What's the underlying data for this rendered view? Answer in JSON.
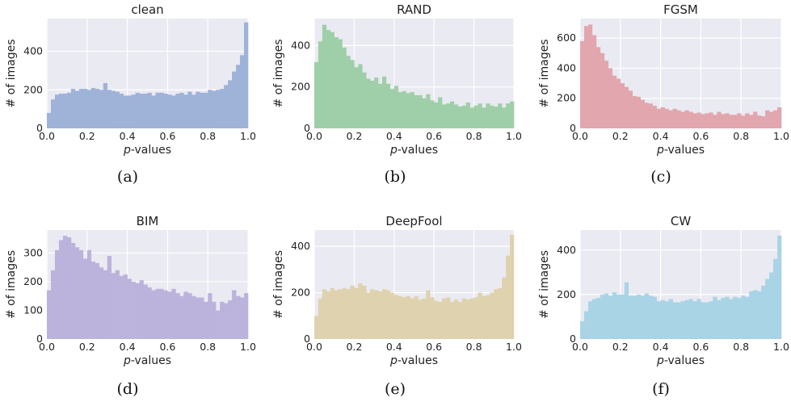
{
  "chart_data": [
    {
      "type": "bar",
      "title": "clean",
      "caption": "(a)",
      "xlabel_italic": "p",
      "xlabel_rest": "-values",
      "ylabel": "# of images",
      "color": "#9fb2d8",
      "xlim": [
        0,
        1
      ],
      "ylim": [
        0,
        570
      ],
      "xticks": [
        "0.0",
        "0.2",
        "0.4",
        "0.6",
        "0.8",
        "1.0"
      ],
      "yticks": [
        0,
        200,
        400
      ],
      "bins": 50,
      "values": [
        80,
        150,
        175,
        180,
        180,
        185,
        205,
        195,
        205,
        205,
        200,
        210,
        205,
        200,
        235,
        200,
        195,
        190,
        180,
        170,
        170,
        175,
        185,
        180,
        180,
        185,
        170,
        185,
        185,
        180,
        175,
        170,
        180,
        185,
        175,
        190,
        175,
        190,
        185,
        185,
        200,
        195,
        200,
        205,
        225,
        250,
        295,
        330,
        380,
        550
      ]
    },
    {
      "type": "bar",
      "title": "RAND",
      "caption": "(b)",
      "xlabel_italic": "p",
      "xlabel_rest": "-values",
      "ylabel": "# of images",
      "color": "#9fcfa8",
      "xlim": [
        0,
        1
      ],
      "ylim": [
        0,
        530
      ],
      "xticks": [
        "0.0",
        "0.2",
        "0.4",
        "0.6",
        "0.8",
        "1.0"
      ],
      "yticks": [
        0,
        200,
        400
      ],
      "bins": 50,
      "values": [
        320,
        420,
        500,
        475,
        465,
        440,
        430,
        390,
        350,
        330,
        295,
        310,
        270,
        240,
        230,
        245,
        215,
        250,
        215,
        190,
        205,
        175,
        180,
        170,
        175,
        160,
        160,
        145,
        165,
        135,
        125,
        150,
        115,
        120,
        130,
        115,
        105,
        110,
        125,
        100,
        110,
        120,
        100,
        120,
        110,
        105,
        120,
        100,
        120,
        130
      ]
    },
    {
      "type": "bar",
      "title": "FGSM",
      "caption": "(c)",
      "xlabel_italic": "p",
      "xlabel_rest": "-values",
      "ylabel": "# of images",
      "color": "#e2a6ae",
      "xlim": [
        0,
        1
      ],
      "ylim": [
        0,
        730
      ],
      "xticks": [
        "0.0",
        "0.2",
        "0.4",
        "0.6",
        "0.8",
        "1.0"
      ],
      "yticks": [
        0,
        200,
        400,
        600
      ],
      "bins": 50,
      "values": [
        580,
        680,
        690,
        620,
        540,
        500,
        450,
        400,
        350,
        330,
        300,
        275,
        250,
        215,
        210,
        190,
        170,
        165,
        150,
        130,
        140,
        130,
        120,
        130,
        120,
        110,
        120,
        110,
        100,
        105,
        95,
        100,
        105,
        90,
        110,
        95,
        100,
        90,
        90,
        100,
        85,
        100,
        90,
        110,
        85,
        80,
        120,
        110,
        120,
        140
      ]
    },
    {
      "type": "bar",
      "title": "BIM",
      "caption": "(d)",
      "xlabel_italic": "p",
      "xlabel_rest": "-values",
      "ylabel": "# of images",
      "color": "#bcb3dc",
      "xlim": [
        0,
        1
      ],
      "ylim": [
        0,
        380
      ],
      "xticks": [
        "0.0",
        "0.2",
        "0.4",
        "0.6",
        "0.8",
        "1.0"
      ],
      "yticks": [
        0,
        100,
        200,
        300
      ],
      "bins": 50,
      "values": [
        170,
        240,
        310,
        345,
        360,
        355,
        335,
        320,
        310,
        280,
        310,
        270,
        265,
        250,
        240,
        290,
        230,
        240,
        220,
        225,
        210,
        200,
        195,
        205,
        190,
        180,
        170,
        175,
        175,
        170,
        165,
        175,
        160,
        150,
        165,
        160,
        150,
        145,
        145,
        130,
        160,
        130,
        100,
        130,
        125,
        135,
        170,
        150,
        145,
        160
      ]
    },
    {
      "type": "bar",
      "title": "DeepFool",
      "caption": "(e)",
      "xlabel_italic": "p",
      "xlabel_rest": "-values",
      "ylabel": "# of images",
      "color": "#dfd2ae",
      "xlim": [
        0,
        1
      ],
      "ylim": [
        0,
        470
      ],
      "xticks": [
        "0.0",
        "0.2",
        "0.4",
        "0.6",
        "0.8",
        "1.0"
      ],
      "yticks": [
        0,
        200,
        400
      ],
      "bins": 50,
      "values": [
        100,
        175,
        215,
        205,
        220,
        210,
        215,
        220,
        215,
        230,
        220,
        240,
        230,
        200,
        215,
        210,
        205,
        215,
        210,
        200,
        190,
        185,
        180,
        185,
        175,
        185,
        170,
        175,
        210,
        180,
        165,
        160,
        175,
        180,
        160,
        170,
        160,
        175,
        170,
        175,
        180,
        200,
        185,
        190,
        200,
        215,
        220,
        265,
        360,
        450
      ]
    },
    {
      "type": "bar",
      "title": "CW",
      "caption": "(f)",
      "xlabel_italic": "p",
      "xlabel_rest": "-values",
      "ylabel": "# of images",
      "color": "#a9d4e6",
      "xlim": [
        0,
        1
      ],
      "ylim": [
        0,
        490
      ],
      "xticks": [
        "0.0",
        "0.2",
        "0.4",
        "0.6",
        "0.8",
        "1.0"
      ],
      "yticks": [
        0,
        200,
        400
      ],
      "bins": 50,
      "values": [
        80,
        125,
        170,
        180,
        185,
        200,
        205,
        195,
        210,
        200,
        200,
        255,
        195,
        195,
        200,
        195,
        205,
        195,
        190,
        170,
        175,
        170,
        180,
        165,
        165,
        170,
        175,
        180,
        170,
        180,
        165,
        165,
        170,
        190,
        175,
        185,
        190,
        180,
        190,
        185,
        195,
        190,
        215,
        220,
        215,
        240,
        270,
        300,
        360,
        465
      ]
    }
  ]
}
